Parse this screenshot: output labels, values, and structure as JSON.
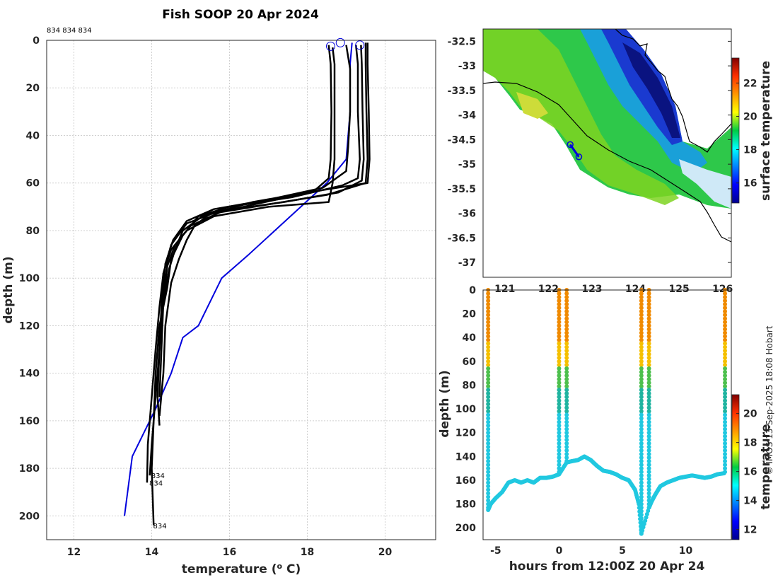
{
  "title": "Fish SOOP 20 Apr 2024",
  "credit": "© IMOS 13-Sep-2025 18:08 Hobart",
  "chart_data": [
    {
      "id": "profiles",
      "type": "line",
      "xlabel": "temperature (o C)",
      "xlabel_parts": {
        "pre": "temperature (",
        "sup": "o",
        "post": " C)"
      },
      "ylabel": "depth (m)",
      "xlim": [
        11.3,
        21.3
      ],
      "ylim": [
        0,
        210
      ],
      "y_reversed": true,
      "grid": true,
      "xticks": [
        12,
        14,
        16,
        18,
        20
      ],
      "yticks": [
        0,
        20,
        40,
        60,
        80,
        100,
        120,
        140,
        160,
        180,
        200
      ],
      "top_label": "834 834 834",
      "end_labels": [
        {
          "text": "834",
          "x": 13.95,
          "y": 183
        },
        {
          "text": "834",
          "x": 13.9,
          "y": 186
        },
        {
          "text": "834",
          "x": 14.0,
          "y": 204
        }
      ],
      "surface_markers": [
        {
          "x": 18.6,
          "y": 2.5
        },
        {
          "x": 18.85,
          "y": 1
        },
        {
          "x": 19.35,
          "y": 2
        }
      ],
      "series": [
        {
          "name": "climatology",
          "color": "#0000dd",
          "x": [
            19.15,
            19.1,
            19.1,
            19.1,
            19.0,
            18.5,
            17.5,
            16.5,
            15.8,
            15.2,
            14.8,
            14.5,
            14.1,
            13.8,
            13.5,
            13.3
          ],
          "y": [
            1,
            10,
            20,
            30,
            50,
            60,
            75,
            90,
            100,
            120,
            125,
            140,
            155,
            165,
            175,
            200
          ]
        },
        {
          "name": "profile-1",
          "color": "#000000",
          "x": [
            18.55,
            18.6,
            18.62,
            18.6,
            18.55,
            18.2,
            17.2,
            15.8,
            15.0,
            14.6,
            14.4,
            14.3,
            14.2,
            14.1,
            14.0,
            13.95
          ],
          "y": [
            2,
            10,
            30,
            50,
            58,
            63,
            67,
            72,
            78,
            86,
            95,
            110,
            130,
            150,
            170,
            183
          ]
        },
        {
          "name": "profile-2",
          "color": "#000000",
          "x": [
            18.65,
            18.7,
            18.7,
            18.7,
            18.65,
            18.55,
            17.0,
            15.6,
            14.9,
            14.5,
            14.3,
            14.2,
            14.1,
            14.0,
            13.9,
            13.88
          ],
          "y": [
            3,
            10,
            30,
            50,
            60,
            68,
            70,
            74,
            80,
            88,
            98,
            112,
            130,
            150,
            170,
            186
          ]
        },
        {
          "name": "profile-3",
          "color": "#000000",
          "x": [
            19.25,
            19.3,
            19.3,
            19.35,
            19.3,
            18.9,
            17.6,
            16.0,
            15.2,
            14.8,
            14.5,
            14.4,
            14.2,
            14.1,
            14.05,
            14.0,
            14.05
          ],
          "y": [
            2,
            10,
            30,
            50,
            58,
            61,
            66,
            70,
            74,
            82,
            92,
            104,
            120,
            140,
            160,
            180,
            204
          ]
        },
        {
          "name": "profile-4",
          "color": "#000000",
          "x": [
            19.38,
            19.4,
            19.42,
            19.45,
            19.4,
            18.8,
            17.4,
            15.7,
            14.9,
            14.5,
            14.3,
            14.25,
            14.2,
            14.15,
            14.2
          ],
          "y": [
            2,
            10,
            30,
            50,
            59,
            64,
            68,
            72,
            77,
            86,
            98,
            112,
            130,
            150,
            162
          ]
        },
        {
          "name": "profile-5",
          "color": "#000000",
          "x": [
            19.5,
            19.5,
            19.52,
            19.55,
            19.5,
            18.5,
            17.0,
            15.5,
            15.1,
            14.9,
            14.7,
            14.5,
            14.35,
            14.3,
            14.2
          ],
          "y": [
            1,
            10,
            30,
            50,
            60,
            65,
            69,
            73,
            78,
            84,
            92,
            102,
            120,
            140,
            158
          ]
        },
        {
          "name": "profile-6",
          "color": "#000000",
          "x": [
            19.55,
            19.55,
            19.58,
            19.6,
            19.55,
            18.0,
            16.6,
            15.3,
            14.8,
            14.6,
            14.45,
            14.3,
            14.25,
            14.2
          ],
          "y": [
            1,
            10,
            30,
            50,
            60,
            64,
            68,
            74,
            80,
            88,
            96,
            110,
            130,
            150
          ]
        },
        {
          "name": "profile-7",
          "color": "#000000",
          "x": [
            19.0,
            19.1,
            19.1,
            19.05,
            19.0,
            18.4,
            17.0,
            15.6,
            14.9,
            14.55,
            14.35,
            14.3,
            14.2
          ],
          "y": [
            2,
            12,
            30,
            45,
            55,
            62,
            67,
            71,
            76,
            84,
            94,
            108,
            128
          ]
        }
      ]
    },
    {
      "id": "sst-map",
      "type": "heatmap",
      "xlim": [
        120.5,
        126.2
      ],
      "ylim": [
        -37.3,
        -32.25
      ],
      "xticks": [
        121,
        122,
        123,
        124,
        125,
        126
      ],
      "xtick_labels": [
        "121",
        "122",
        "123",
        "124",
        "125",
        "126"
      ],
      "yticks": [
        -32.5,
        -33,
        -33.5,
        -34,
        -34.5,
        -35,
        -35.5,
        -36,
        -36.5,
        -37
      ],
      "colorbar": {
        "label": "surface temperature",
        "range": [
          14.8,
          23.5
        ],
        "ticks": [
          16,
          18,
          20,
          22
        ]
      },
      "track": [
        [
          122.5,
          -34.6
        ],
        [
          122.7,
          -34.85
        ]
      ]
    },
    {
      "id": "depth-time",
      "type": "scatter",
      "xlabel": "hours from 12:00Z 20 Apr 24",
      "ylabel": "depth (m)",
      "xlim": [
        -6,
        13.6
      ],
      "ylim": [
        0,
        210
      ],
      "y_reversed": true,
      "xticks": [
        -5,
        0,
        5,
        10
      ],
      "yticks": [
        0,
        20,
        40,
        60,
        80,
        100,
        120,
        140,
        160,
        180,
        200
      ],
      "colorbar": {
        "label": "temperature",
        "range": [
          11.3,
          21.3
        ],
        "ticks": [
          12,
          14,
          16,
          18,
          20
        ]
      },
      "casts": [
        -5.6,
        0.0,
        0.6,
        6.5,
        7.1,
        13.1
      ],
      "bottom_trace": {
        "x": [
          -5.6,
          -5.4,
          -5.0,
          -4.5,
          -4.0,
          -3.5,
          -3.0,
          -2.5,
          -2.0,
          -1.5,
          -1.0,
          -0.5,
          0.0,
          0.6,
          1.0,
          1.5,
          2.0,
          2.5,
          3.0,
          3.5,
          4.0,
          4.5,
          5.0,
          5.5,
          6.0,
          6.3,
          6.5,
          7.1,
          7.3,
          7.6,
          8.0,
          8.5,
          9.0,
          9.5,
          10.0,
          10.5,
          11.0,
          11.5,
          12.0,
          12.5,
          13.1
        ],
        "y": [
          185,
          180,
          175,
          170,
          162,
          160,
          162,
          160,
          162,
          158,
          158,
          157,
          155,
          145,
          144,
          143,
          140,
          143,
          148,
          152,
          153,
          155,
          158,
          160,
          168,
          180,
          205,
          183,
          178,
          172,
          165,
          162,
          160,
          158,
          157,
          156,
          157,
          158,
          157,
          155,
          154
        ]
      }
    }
  ]
}
